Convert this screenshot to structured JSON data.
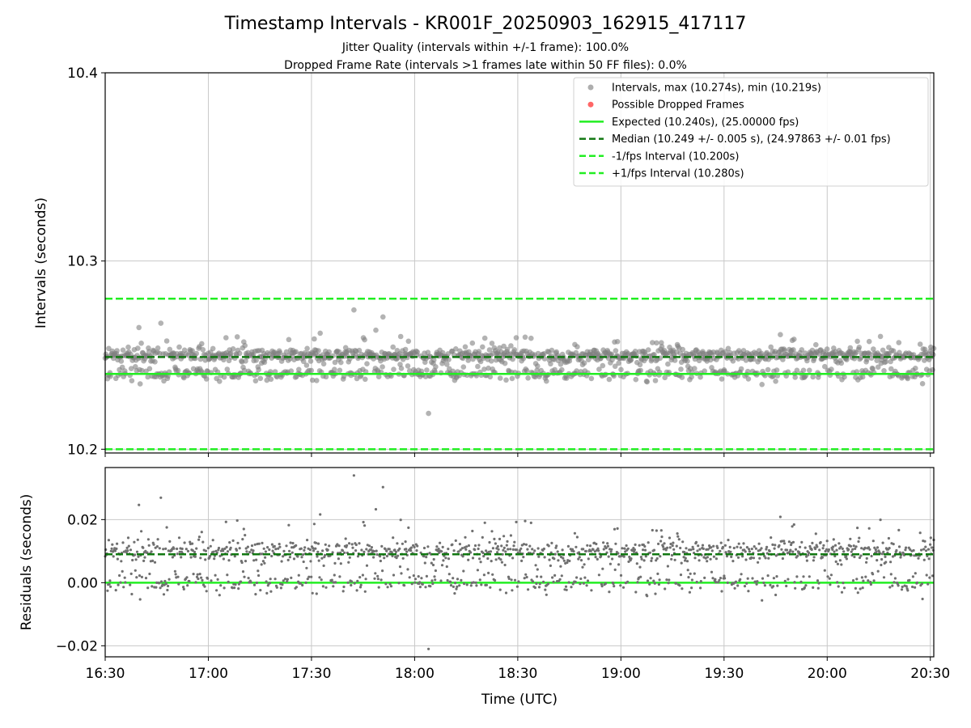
{
  "figure": {
    "title": "Timestamp Intervals - KR001F_20250903_162915_417117",
    "subtitle_jitter": "Jitter Quality (intervals within +/-1 frame): 100.0%",
    "subtitle_dropped": "Dropped Frame Rate (intervals >1 frames late within 50 FF files): 0.0%"
  },
  "colors": {
    "points": "#808080",
    "dropped": "#ff6666",
    "expected": "#22ee22",
    "median": "#117711",
    "fps_bounds": "#22ee22",
    "grid": "#c8c8c8"
  },
  "chart_data": [
    {
      "type": "scatter",
      "panel": "intervals",
      "ylabel": "Intervals (seconds)",
      "ylim": [
        10.198,
        10.4
      ],
      "yticks": [
        {
          "value": 10.2,
          "label": "10.2"
        },
        {
          "value": 10.3,
          "label": "10.3"
        },
        {
          "value": 10.4,
          "label": "10.4"
        }
      ],
      "xlim_minutes": [
        990,
        1231
      ],
      "legend_position": "top-right",
      "legend": [
        {
          "kind": "marker",
          "color": "#a0a0a0",
          "label": "Intervals, max (10.274s), min (10.219s)"
        },
        {
          "kind": "marker",
          "color": "#ff6666",
          "label": "Possible Dropped Frames"
        },
        {
          "kind": "solid",
          "color": "#22ee22",
          "label": "Expected (10.240s), (25.00000 fps)"
        },
        {
          "kind": "dashed",
          "color": "#117711",
          "label": "Median (10.249 +/- 0.005 s), (24.97863 +/- 0.01 fps)"
        },
        {
          "kind": "dashed",
          "color": "#22ee22",
          "label": "-1/fps Interval (10.200s)"
        },
        {
          "kind": "dashed",
          "color": "#22ee22",
          "label": "+1/fps Interval (10.280s)"
        }
      ],
      "reference_lines": {
        "expected": 10.24,
        "median": 10.249,
        "minus_one_fps": 10.2,
        "plus_one_fps": 10.28
      },
      "series": [
        {
          "name": "Intervals",
          "y_max": 10.274,
          "y_min": 10.219,
          "dominant_levels": [
            10.24,
            10.25
          ],
          "approx_point_count": 1400
        },
        {
          "name": "Possible Dropped Frames",
          "values": []
        }
      ]
    },
    {
      "type": "scatter",
      "panel": "residuals",
      "ylabel": "Residuals (seconds)",
      "xlabel": "Time (UTC)",
      "ylim": [
        -0.0235,
        0.0365
      ],
      "yticks": [
        {
          "value": -0.02,
          "label": "−0.02"
        },
        {
          "value": 0.0,
          "label": "0.00"
        },
        {
          "value": 0.02,
          "label": "0.02"
        }
      ],
      "xlim_minutes": [
        990,
        1231
      ],
      "xticks": [
        {
          "value": 990,
          "label": "16:30"
        },
        {
          "value": 1020,
          "label": "17:00"
        },
        {
          "value": 1050,
          "label": "17:30"
        },
        {
          "value": 1080,
          "label": "18:00"
        },
        {
          "value": 1110,
          "label": "18:30"
        },
        {
          "value": 1140,
          "label": "19:00"
        },
        {
          "value": 1170,
          "label": "19:30"
        },
        {
          "value": 1200,
          "label": "20:00"
        },
        {
          "value": 1230,
          "label": "20:30"
        }
      ],
      "reference_lines": {
        "zero": 0.0,
        "median": 0.009
      },
      "series": [
        {
          "name": "Residuals",
          "y_max": 0.034,
          "y_min": -0.021,
          "dominant_levels": [
            0.0,
            0.01
          ],
          "approx_point_count": 1400
        }
      ]
    }
  ]
}
